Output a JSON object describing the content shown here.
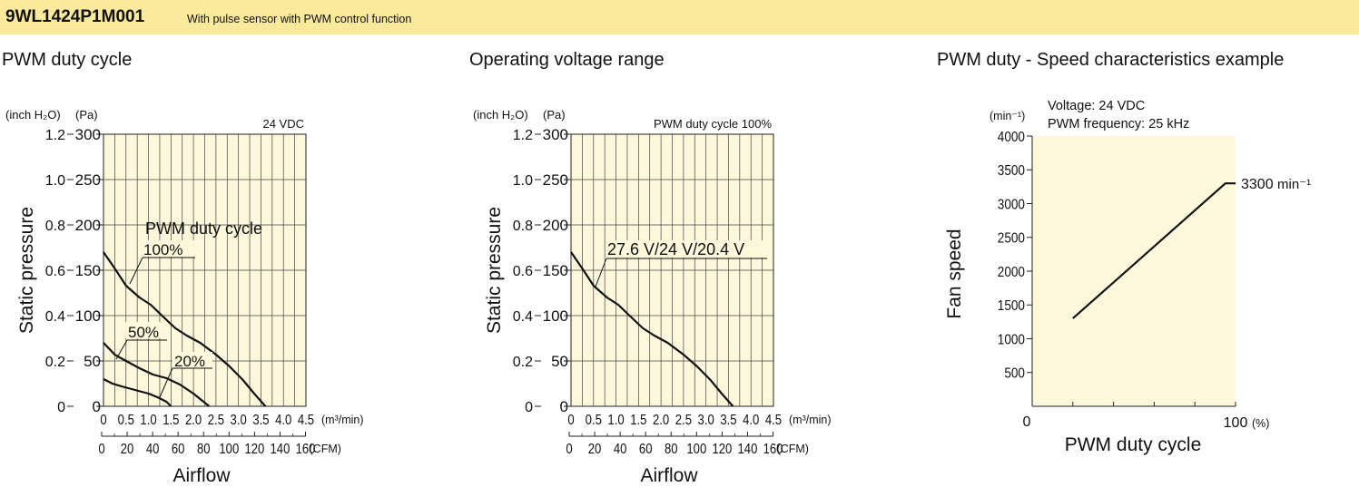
{
  "header": {
    "model": "9WL1424P1M001",
    "description": "With pulse sensor with PWM control function"
  },
  "chart_data": [
    {
      "type": "line",
      "title": "PWM duty cycle",
      "condition": "24 VDC",
      "xlabel": "Airflow",
      "ylabel": "Static pressure",
      "x_unit": "(m³/min)",
      "x2_unit": "(CFM)",
      "y_unit_inch": "(inch H₂O)",
      "y_unit_pa": "(Pa)",
      "xlim": [
        0,
        4.5
      ],
      "ylim": [
        0,
        300
      ],
      "x_ticks": [
        "0",
        "0.5",
        "1.0",
        "1.5",
        "2.0",
        "2.5",
        "3.0",
        "3.5",
        "4.0",
        "4.5"
      ],
      "x2_ticks": [
        "0",
        "20",
        "40",
        "60",
        "80",
        "100",
        "120",
        "140",
        "160"
      ],
      "y_ticks_pa": [
        "0",
        "50",
        "100",
        "150",
        "200",
        "250",
        "300"
      ],
      "y_ticks_inch": [
        "0",
        "0.2",
        "0.4",
        "0.6",
        "0.8",
        "1.0",
        "1.2"
      ],
      "grid": true,
      "legend_title": "PWM duty cycle",
      "series": [
        {
          "name": "100%",
          "x": [
            0,
            0.25,
            0.5,
            0.8,
            1.05,
            1.3,
            1.6,
            1.85,
            2.15,
            2.5,
            2.8,
            3.1,
            3.35,
            3.6
          ],
          "y": [
            170,
            152,
            133,
            120,
            112,
            100,
            86,
            78,
            70,
            57,
            44,
            29,
            14,
            0
          ]
        },
        {
          "name": "50%",
          "x": [
            0,
            0.25,
            0.5,
            0.8,
            1.1,
            1.4,
            1.7,
            2.0,
            2.2,
            2.35
          ],
          "y": [
            70,
            57,
            50,
            42,
            35,
            31,
            24,
            14,
            6,
            0
          ]
        },
        {
          "name": "20%",
          "x": [
            0,
            0.2,
            0.4,
            0.7,
            1.0,
            1.2,
            1.4,
            1.5
          ],
          "y": [
            30,
            25,
            22,
            18,
            14,
            10,
            5,
            0
          ]
        }
      ]
    },
    {
      "type": "line",
      "title": "Operating voltage range",
      "condition": "PWM duty cycle 100%",
      "xlabel": "Airflow",
      "ylabel": "Static pressure",
      "x_unit": "(m³/min)",
      "x2_unit": "(CFM)",
      "y_unit_inch": "(inch H₂O)",
      "y_unit_pa": "(Pa)",
      "xlim": [
        0,
        4.5
      ],
      "ylim": [
        0,
        300
      ],
      "x_ticks": [
        "0",
        "0.5",
        "1.0",
        "1.5",
        "2.0",
        "2.5",
        "3.0",
        "3.5",
        "4.0",
        "4.5"
      ],
      "x2_ticks": [
        "0",
        "20",
        "40",
        "60",
        "80",
        "100",
        "120",
        "140",
        "160"
      ],
      "y_ticks_pa": [
        "0",
        "50",
        "100",
        "150",
        "200",
        "250",
        "300"
      ],
      "y_ticks_inch": [
        "0",
        "0.2",
        "0.4",
        "0.6",
        "0.8",
        "1.0",
        "1.2"
      ],
      "grid": true,
      "series": [
        {
          "name": "27.6 V/24 V/20.4 V",
          "x": [
            0,
            0.25,
            0.5,
            0.8,
            1.05,
            1.3,
            1.6,
            1.85,
            2.15,
            2.5,
            2.8,
            3.1,
            3.35,
            3.6
          ],
          "y": [
            170,
            152,
            133,
            120,
            112,
            100,
            86,
            78,
            70,
            57,
            44,
            29,
            14,
            0
          ]
        }
      ]
    },
    {
      "type": "line",
      "title": "PWM duty - Speed characteristics example",
      "condition_lines": [
        "Voltage: 24 VDC",
        "PWM frequency: 25 kHz"
      ],
      "xlabel": "PWM duty cycle",
      "ylabel": "Fan speed",
      "y_unit": "(min⁻¹)",
      "x_unit": "(%)",
      "x_tick_labels": {
        "start": "0",
        "end": "100"
      },
      "xlim": [
        0,
        100
      ],
      "ylim": [
        0,
        4000
      ],
      "y_ticks": [
        "500",
        "1000",
        "1500",
        "2000",
        "2500",
        "3000",
        "3500",
        "4000"
      ],
      "y_zero_label": "0",
      "grid": false,
      "annotation": {
        "value": "3300",
        "unit": "min⁻¹"
      },
      "series": [
        {
          "x": [
            20,
            95,
            100
          ],
          "y": [
            1300,
            3300,
            3300
          ]
        }
      ]
    }
  ]
}
